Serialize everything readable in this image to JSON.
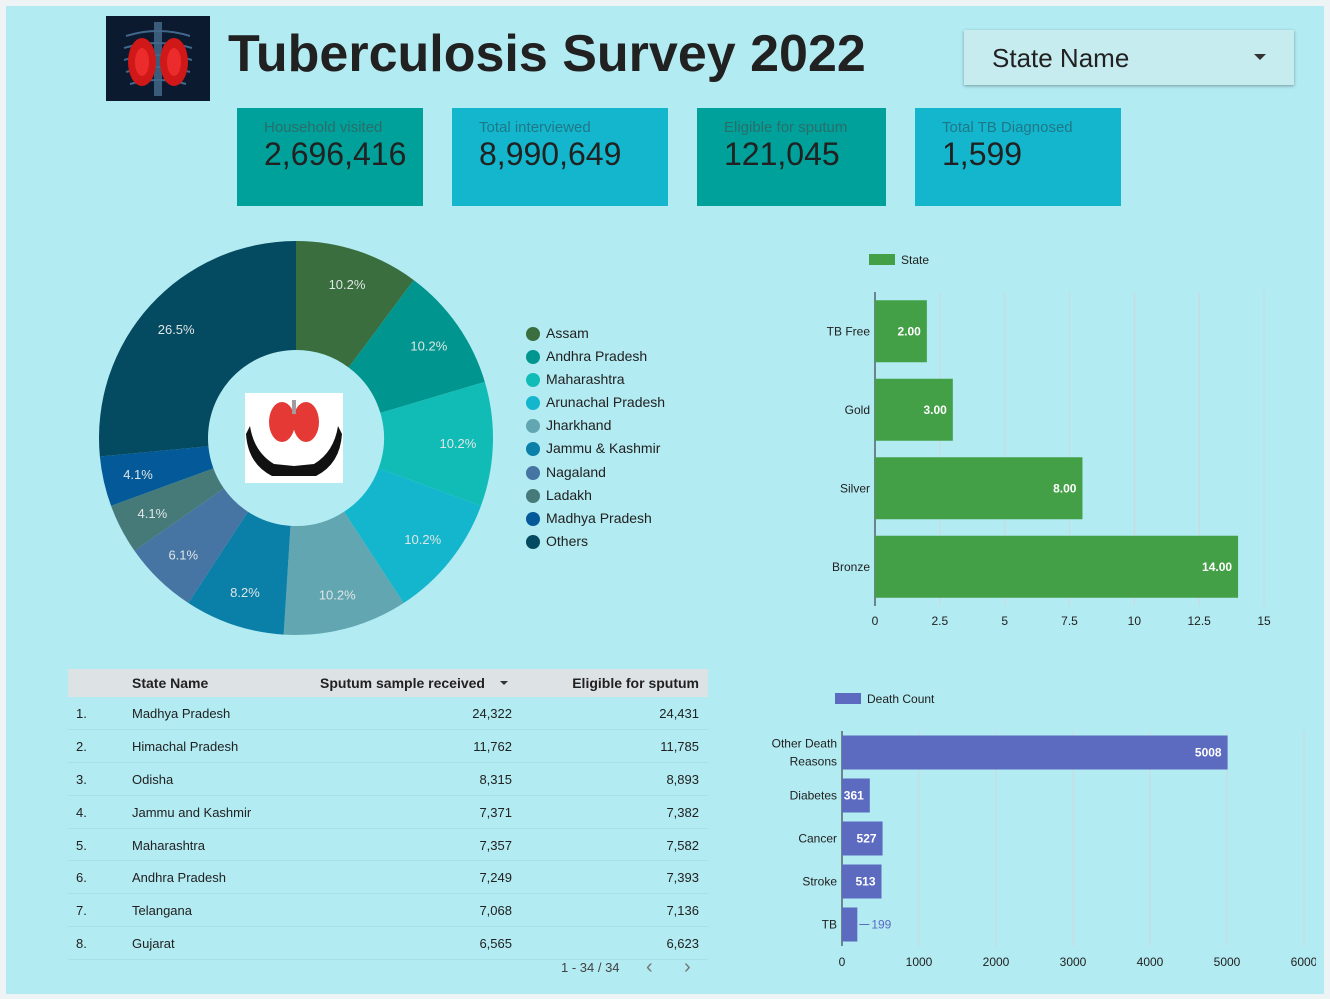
{
  "header": {
    "title": "Tuberculosis Survey 2022",
    "logo_icon": "lungs-xray-icon"
  },
  "filter": {
    "label": "State Name",
    "caret_icon": "caret-down-icon"
  },
  "kpis": [
    {
      "label": "Household visited",
      "value": "2,696,416",
      "color": "#00a19a"
    },
    {
      "label": "Total interviewed",
      "value": "8,990,649",
      "color": "#13b6cc"
    },
    {
      "label": "Eligible for sputum",
      "value": "121,045",
      "color": "#00a19a"
    },
    {
      "label": "Total TB Diagnosed",
      "value": "1,599",
      "color": "#13b6cc"
    }
  ],
  "center_logo_icon": "hands-holding-lungs-icon",
  "chart_data": [
    {
      "type": "pie",
      "title": "",
      "donut": true,
      "legend_position": "right",
      "categories": [
        "Assam",
        "Andhra Pradesh",
        "Maharashtra",
        "Arunachal Pradesh",
        "Jharkhand",
        "Jammu & Kashmir",
        "Nagaland",
        "Ladakh",
        "Madhya Pradesh",
        "Others"
      ],
      "values": [
        10.2,
        10.2,
        10.2,
        10.2,
        10.2,
        8.2,
        6.1,
        4.1,
        4.1,
        26.5
      ],
      "labels": [
        "10.2%",
        "10.2%",
        "10.2%",
        "10.2%",
        "10.2%",
        "8.2%",
        "6.1%",
        "4.1%",
        "4.1%",
        "26.5%"
      ],
      "colors": [
        "#3a6e3e",
        "#00968f",
        "#12bcb6",
        "#13b6cc",
        "#62a6b1",
        "#0a7fa8",
        "#4674a3",
        "#467a78",
        "#045999",
        "#044a60"
      ]
    },
    {
      "type": "bar",
      "orientation": "horizontal",
      "series": [
        {
          "name": "State",
          "values": [
            2.0,
            3.0,
            8.0,
            14.0
          ],
          "color": "#43a047"
        }
      ],
      "categories": [
        "TB Free",
        "Gold",
        "Silver",
        "Bronze"
      ],
      "value_labels": [
        "2.00",
        "3.00",
        "8.00",
        "14.00"
      ],
      "xlim": [
        0,
        15
      ],
      "xticks": [
        "0",
        "2.5",
        "5",
        "7.5",
        "10",
        "12.5",
        "15"
      ],
      "legend_position": "top-left",
      "grid": true
    },
    {
      "type": "bar",
      "orientation": "horizontal",
      "series": [
        {
          "name": "Death Count",
          "values": [
            5008,
            361,
            527,
            513,
            199
          ],
          "color": "#5c6bc0"
        }
      ],
      "categories": [
        "Other Death Reasons",
        "Diabetes",
        "Cancer",
        "Stroke",
        "TB"
      ],
      "category_lines": [
        [
          "Other Death",
          "Reasons"
        ],
        [
          "Diabetes"
        ],
        [
          "Cancer"
        ],
        [
          "Stroke"
        ],
        [
          "TB"
        ]
      ],
      "value_labels": [
        "5008",
        "361",
        "527",
        "513",
        "199"
      ],
      "xlim": [
        0,
        6000
      ],
      "xticks": [
        "0",
        "1000",
        "2000",
        "3000",
        "4000",
        "5000",
        "6000"
      ],
      "legend_position": "top-left",
      "grid": true
    }
  ],
  "table": {
    "columns": [
      "State Name",
      "Sputum sample received",
      "Eligible for sputum"
    ],
    "sort_icon": "sort-desc-icon",
    "rows": [
      {
        "rank": "1.",
        "state": "Madhya Pradesh",
        "received": "24,322",
        "eligible": "24,431"
      },
      {
        "rank": "2.",
        "state": "Himachal Pradesh",
        "received": "11,762",
        "eligible": "11,785"
      },
      {
        "rank": "3.",
        "state": "Odisha",
        "received": "8,315",
        "eligible": "8,893"
      },
      {
        "rank": "4.",
        "state": "Jammu and Kashmir",
        "received": "7,371",
        "eligible": "7,382"
      },
      {
        "rank": "5.",
        "state": "Maharashtra",
        "received": "7,357",
        "eligible": "7,582"
      },
      {
        "rank": "6.",
        "state": "Andhra Pradesh",
        "received": "7,249",
        "eligible": "7,393"
      },
      {
        "rank": "7.",
        "state": "Telangana",
        "received": "7,068",
        "eligible": "7,136"
      },
      {
        "rank": "8.",
        "state": "Gujarat",
        "received": "6,565",
        "eligible": "6,623"
      }
    ],
    "pagination": "1 - 34 / 34",
    "prev_icon": "chevron-left-icon",
    "next_icon": "chevron-right-icon"
  }
}
